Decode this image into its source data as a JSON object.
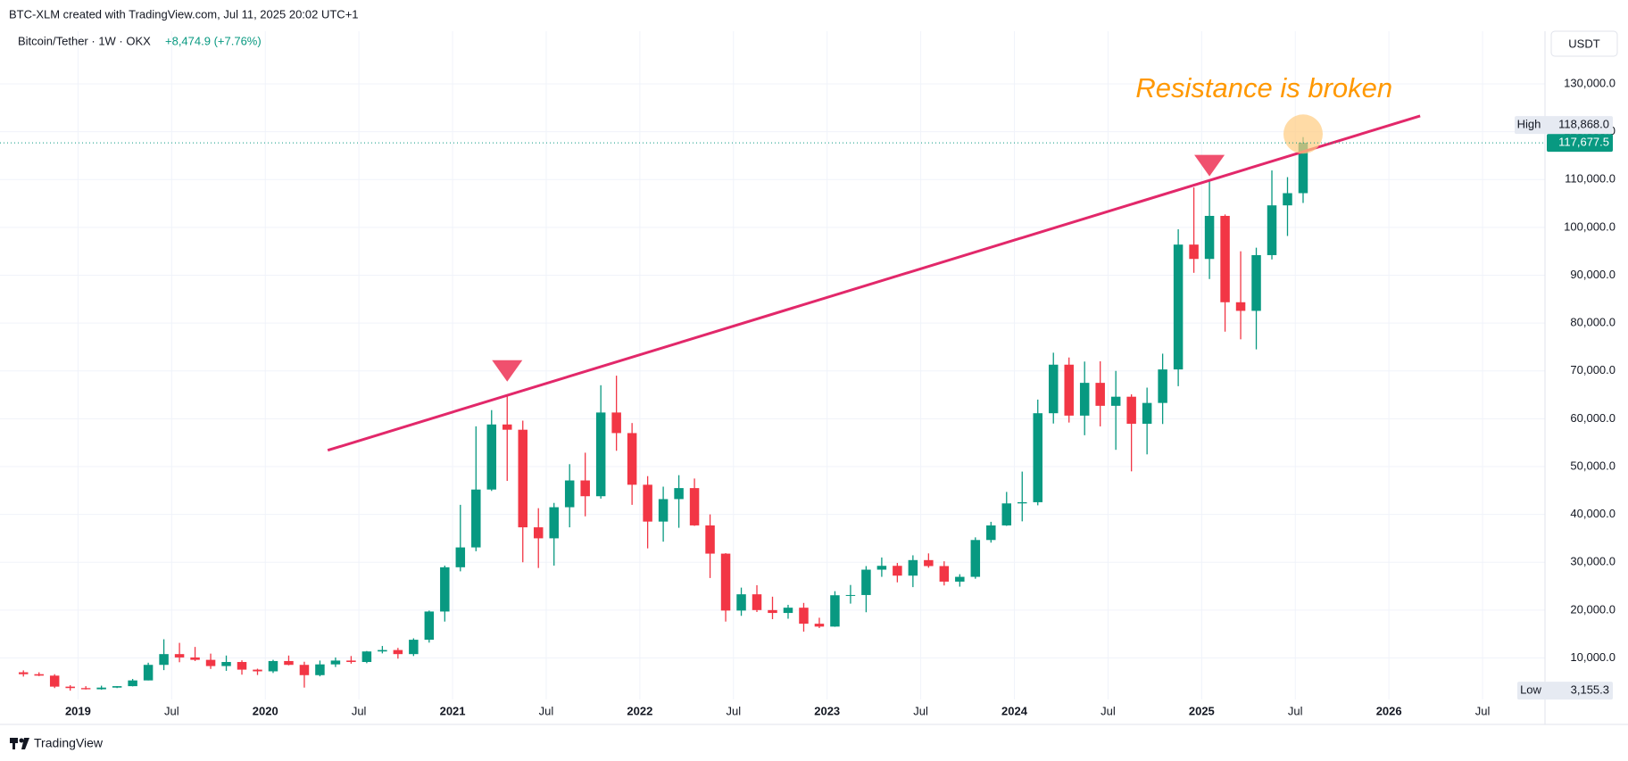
{
  "chart_data": {
    "type": "candlestick",
    "watermark": "BTC-XLM created with TradingView.com, Jul 11, 2025 20:02 UTC+1",
    "symbol": "Bitcoin/Tether · 1W · OKX",
    "change": "+8,474.9 (+7.76%)",
    "currency": "USDT",
    "brand": "TradingView",
    "up_color": "#089981",
    "down_color": "#f23645",
    "grid": true,
    "x": [
      "2018-09",
      "2018-10",
      "2018-11",
      "2018-12",
      "2019-01",
      "2019-02",
      "2019-03",
      "2019-04",
      "2019-05",
      "2019-06",
      "2019-07",
      "2019-08",
      "2019-09",
      "2019-10",
      "2019-11",
      "2019-12",
      "2020-01",
      "2020-02",
      "2020-03",
      "2020-04",
      "2020-05",
      "2020-06",
      "2020-07",
      "2020-08",
      "2020-09",
      "2020-10",
      "2020-11",
      "2020-12",
      "2021-01",
      "2021-02",
      "2021-03",
      "2021-04",
      "2021-05",
      "2021-06",
      "2021-07",
      "2021-08",
      "2021-09",
      "2021-10",
      "2021-11",
      "2021-12",
      "2022-01",
      "2022-02",
      "2022-03",
      "2022-04",
      "2022-05",
      "2022-06",
      "2022-07",
      "2022-08",
      "2022-09",
      "2022-10",
      "2022-11",
      "2022-12",
      "2023-01",
      "2023-02",
      "2023-03",
      "2023-04",
      "2023-05",
      "2023-06",
      "2023-07",
      "2023-08",
      "2023-09",
      "2023-10",
      "2023-11",
      "2023-12",
      "2024-01",
      "2024-02",
      "2024-03",
      "2024-04",
      "2024-05",
      "2024-06",
      "2024-07",
      "2024-08",
      "2024-09",
      "2024-10",
      "2024-11",
      "2024-12",
      "2025-01",
      "2025-02",
      "2025-03",
      "2025-04",
      "2025-05",
      "2025-06",
      "2025-07"
    ],
    "open": [
      7000,
      6600,
      6300,
      4000,
      3700,
      3450,
      3800,
      4100,
      5300,
      8550,
      10800,
      10100,
      9600,
      8300,
      9150,
      7550,
      7200,
      9350,
      8550,
      6400,
      8650,
      9450,
      9150,
      11350,
      11650,
      10800,
      13800,
      19700,
      28950,
      33100,
      45200,
      58800,
      57700,
      37300,
      35000,
      41500,
      47100,
      43800,
      61300,
      57000,
      46200,
      38500,
      43200,
      45500,
      37700,
      31800,
      19900,
      23300,
      20000,
      19400,
      20500,
      17150,
      16550,
      23100,
      23150,
      28450,
      29250,
      27200,
      30450,
      29200,
      25950,
      26950,
      34650,
      37700,
      42300,
      42550,
      61150,
      71300,
      60650,
      67500,
      62700,
      64600,
      58950,
      63300,
      70300,
      96400,
      93400,
      102400,
      84350,
      82550,
      94200,
      104600,
      107150
    ],
    "high": [
      7400,
      7000,
      6600,
      4300,
      4100,
      4200,
      4100,
      5600,
      9000,
      13900,
      13150,
      12300,
      10900,
      10500,
      9500,
      7750,
      9600,
      10500,
      9200,
      9450,
      10100,
      10400,
      11450,
      12500,
      12100,
      14100,
      19900,
      29300,
      42000,
      58400,
      61800,
      64850,
      59600,
      41300,
      42400,
      50500,
      52900,
      67000,
      69000,
      59100,
      48000,
      45800,
      48200,
      47500,
      40000,
      31900,
      24700,
      25200,
      22800,
      21100,
      21500,
      18400,
      23950,
      25250,
      29200,
      31000,
      29850,
      31450,
      31850,
      30200,
      27500,
      35200,
      38450,
      44700,
      48950,
      64000,
      73800,
      72800,
      71950,
      72000,
      70000,
      65100,
      66500,
      73600,
      99600,
      108350,
      109600,
      102700,
      95000,
      95750,
      111900,
      110500,
      118868
    ],
    "low": [
      6100,
      6200,
      3700,
      3155.3,
      3400,
      3350,
      3700,
      4050,
      5300,
      7450,
      9100,
      9350,
      7700,
      7300,
      6500,
      6430,
      6850,
      8450,
      3800,
      6150,
      8100,
      8800,
      8900,
      10950,
      9850,
      10400,
      13200,
      17600,
      28100,
      32300,
      44900,
      47000,
      30000,
      28800,
      29300,
      37300,
      39600,
      43300,
      53300,
      42000,
      32900,
      34300,
      37200,
      37600,
      26700,
      17600,
      18800,
      19600,
      18100,
      18200,
      15500,
      16250,
      16500,
      21350,
      19550,
      26950,
      25800,
      24800,
      28850,
      25150,
      24900,
      26550,
      34100,
      37600,
      38550,
      41900,
      59000,
      59200,
      56550,
      58400,
      53500,
      49000,
      52550,
      58900,
      66800,
      90500,
      89200,
      78200,
      76600,
      74500,
      93300,
      98200,
      105100
    ],
    "close": [
      6600,
      6300,
      4000,
      3700,
      3450,
      3800,
      4100,
      5300,
      8550,
      10800,
      10100,
      9600,
      8300,
      9150,
      7550,
      7200,
      9350,
      8550,
      6400,
      8650,
      9450,
      9150,
      11350,
      11650,
      10800,
      13800,
      19700,
      28950,
      33100,
      45200,
      58800,
      57700,
      37300,
      35000,
      41500,
      47100,
      43800,
      61300,
      57000,
      46200,
      38500,
      43200,
      45500,
      37700,
      31800,
      19900,
      23300,
      20000,
      19400,
      20500,
      17150,
      16550,
      23100,
      23150,
      28450,
      29250,
      27200,
      30450,
      29200,
      25950,
      26950,
      34650,
      37700,
      42300,
      42550,
      61150,
      71300,
      60650,
      67500,
      62700,
      64600,
      58950,
      63300,
      70300,
      96400,
      93400,
      102400,
      84350,
      82550,
      94200,
      104600,
      107150,
      117677.5
    ],
    "xlim": [
      "2018-08",
      "2026-11"
    ],
    "xticks": [
      {
        "value": "2019-01",
        "label": "2019"
      },
      {
        "value": "2019-07",
        "label": "Jul"
      },
      {
        "value": "2020-01",
        "label": "2020"
      },
      {
        "value": "2020-07",
        "label": "Jul"
      },
      {
        "value": "2021-01",
        "label": "2021"
      },
      {
        "value": "2021-07",
        "label": "Jul"
      },
      {
        "value": "2022-01",
        "label": "2022"
      },
      {
        "value": "2022-07",
        "label": "Jul"
      },
      {
        "value": "2023-01",
        "label": "2023"
      },
      {
        "value": "2023-07",
        "label": "Jul"
      },
      {
        "value": "2024-01",
        "label": "2024"
      },
      {
        "value": "2024-07",
        "label": "Jul"
      },
      {
        "value": "2025-01",
        "label": "2025"
      },
      {
        "value": "2025-07",
        "label": "Jul"
      },
      {
        "value": "2026-01",
        "label": "2026"
      },
      {
        "value": "2026-07",
        "label": "Jul"
      }
    ],
    "ylim": [
      -3900,
      141000
    ],
    "yticks": [
      {
        "value": 10000,
        "label": "10,000.0"
      },
      {
        "value": 20000,
        "label": "20,000.0"
      },
      {
        "value": 30000,
        "label": "30,000.0"
      },
      {
        "value": 40000,
        "label": "40,000.0"
      },
      {
        "value": 50000,
        "label": "50,000.0"
      },
      {
        "value": 60000,
        "label": "60,000.0"
      },
      {
        "value": 70000,
        "label": "70,000.0"
      },
      {
        "value": 80000,
        "label": "80,000.0"
      },
      {
        "value": 90000,
        "label": "90,000.0"
      },
      {
        "value": 100000,
        "label": "100,000.0"
      },
      {
        "value": 110000,
        "label": "110,000.0"
      },
      {
        "value": 120000,
        "label": "120,000.0"
      },
      {
        "value": 130000,
        "label": "130,000.0"
      }
    ],
    "high_tag": {
      "label": "High",
      "value": 118868,
      "value_label": "118,868.0"
    },
    "last_price": {
      "value": 117677.5,
      "value_label": "117,677.5",
      "color": "#089981"
    },
    "low_tag": {
      "label": "Low",
      "value": 3155.3,
      "value_label": "3,155.3"
    },
    "trendline": {
      "color": "#e2286a",
      "x": [
        "2020-05",
        "2026-03"
      ],
      "y": [
        53400,
        123300
      ]
    },
    "markers": [
      {
        "x": "2021-04",
        "y": 70000,
        "color": "#f0506e"
      },
      {
        "x": "2025-01",
        "y": 112900,
        "color": "#f0506e"
      }
    ],
    "highlight": {
      "x": "2025-07",
      "y": 119500,
      "color": "#ffcc80"
    },
    "annotation": {
      "text": "Resistance is broken",
      "x": "2025-05",
      "y": 128700,
      "color": "#ff9800"
    }
  }
}
